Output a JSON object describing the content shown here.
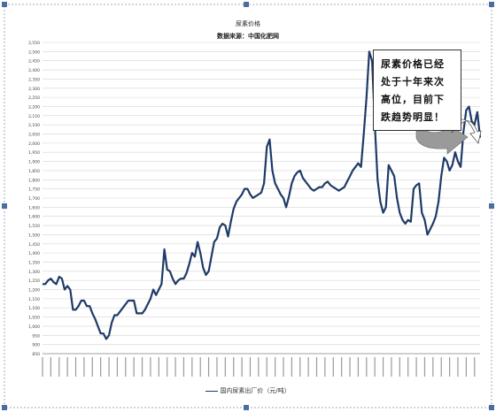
{
  "chart_data": {
    "type": "line",
    "title": "尿素价格",
    "subtitle": "数据来源：中国化肥网",
    "ylim": [
      850,
      2550
    ],
    "yticks": [
      850,
      900,
      950,
      1000,
      1050,
      1100,
      1150,
      1200,
      1250,
      1300,
      1350,
      1400,
      1450,
      1500,
      1550,
      1600,
      1650,
      1700,
      1750,
      1800,
      1850,
      1900,
      1950,
      2000,
      2050,
      2100,
      2150,
      2200,
      2250,
      2300,
      2350,
      2400,
      2450,
      2500,
      2550
    ],
    "grid": true,
    "legend": "bottom",
    "series": [
      {
        "name": "国内尿素出厂价（元/吨）",
        "color": "#1f3a68",
        "values": [
          1230,
          1230,
          1250,
          1260,
          1240,
          1230,
          1270,
          1260,
          1200,
          1220,
          1200,
          1090,
          1090,
          1110,
          1140,
          1140,
          1110,
          1110,
          1070,
          1040,
          1000,
          960,
          960,
          930,
          950,
          1020,
          1060,
          1060,
          1080,
          1100,
          1120,
          1140,
          1140,
          1140,
          1070,
          1070,
          1070,
          1090,
          1120,
          1150,
          1200,
          1170,
          1200,
          1230,
          1420,
          1310,
          1300,
          1260,
          1230,
          1250,
          1260,
          1260,
          1290,
          1340,
          1400,
          1380,
          1460,
          1400,
          1320,
          1280,
          1300,
          1380,
          1460,
          1480,
          1540,
          1560,
          1550,
          1490,
          1570,
          1640,
          1680,
          1700,
          1720,
          1750,
          1750,
          1720,
          1700,
          1710,
          1720,
          1730,
          1780,
          1980,
          2020,
          1850,
          1780,
          1750,
          1720,
          1700,
          1650,
          1710,
          1780,
          1820,
          1840,
          1850,
          1810,
          1790,
          1770,
          1750,
          1740,
          1750,
          1760,
          1760,
          1780,
          1790,
          1770,
          1760,
          1750,
          1740,
          1750,
          1760,
          1790,
          1820,
          1850,
          1870,
          1890,
          1870,
          2050,
          2250,
          2500,
          2450,
          2100,
          1800,
          1680,
          1620,
          1650,
          1880,
          1850,
          1820,
          1700,
          1620,
          1580,
          1560,
          1580,
          1570,
          1750,
          1770,
          1780,
          1620,
          1580,
          1500,
          1530,
          1560,
          1600,
          1680,
          1820,
          1920,
          1900,
          1850,
          1880,
          1950,
          1900,
          1870,
          2060,
          2180,
          2200,
          2120,
          2100,
          2170,
          2030
        ]
      }
    ],
    "annotation": "尿素价格已经\n处于十年来次\n高位，目前下\n跌趋势明显！"
  }
}
